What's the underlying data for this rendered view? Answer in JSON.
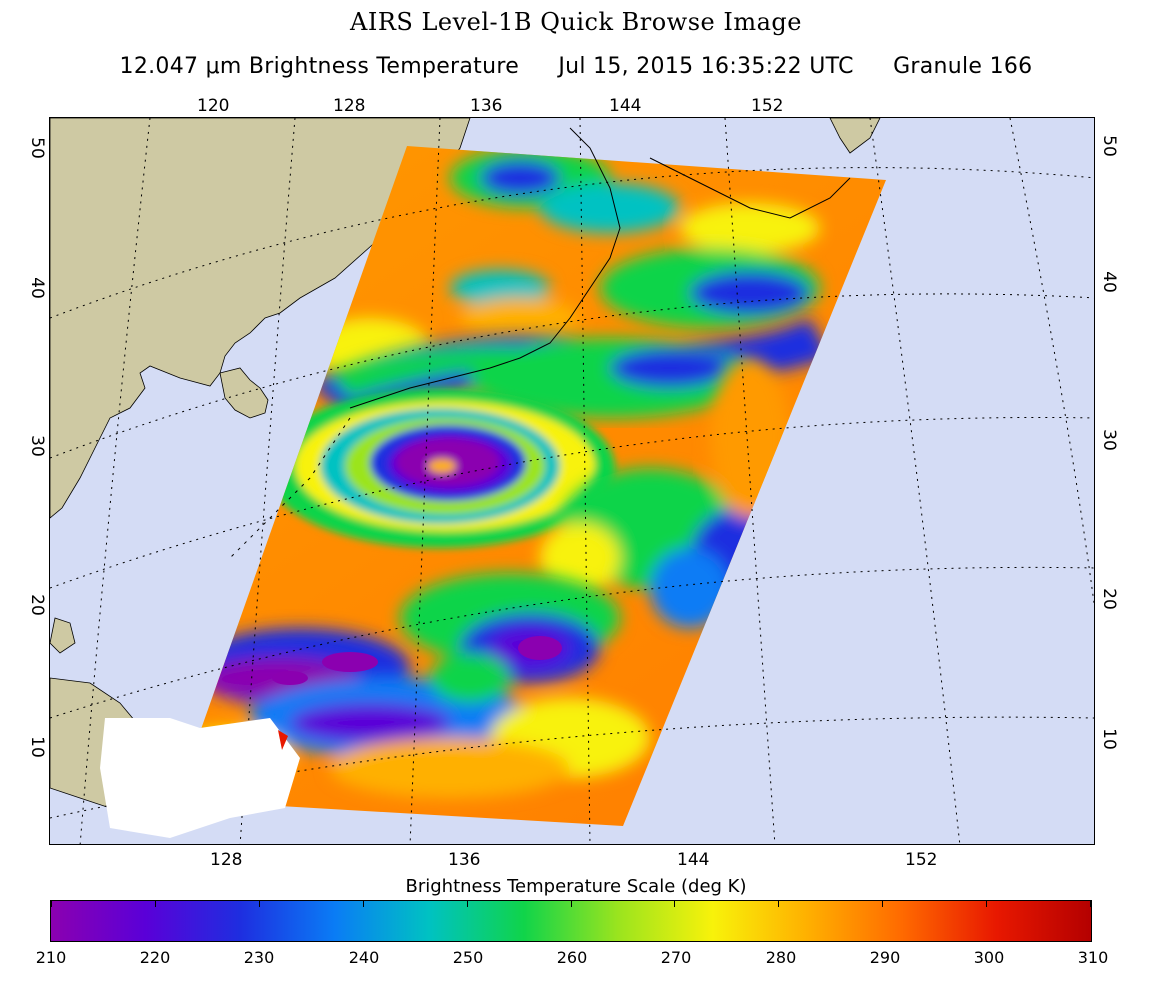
{
  "title": "AIRS Level-1B Quick Browse Image",
  "subtitle": {
    "channel": "12.047 μm Brightness Temperature",
    "datetime": "Jul 15, 2015 16:35:22 UTC",
    "granule": "Granule 166"
  },
  "top_lon_labels": [
    "120",
    "128",
    "136",
    "144",
    "152"
  ],
  "bottom_lon_labels": [
    "128",
    "136",
    "144",
    "152"
  ],
  "left_lat_labels": [
    "50",
    "40",
    "30",
    "20",
    "10"
  ],
  "right_lat_labels": [
    "50",
    "40",
    "30",
    "20",
    "10"
  ],
  "colorbar": {
    "title": "Brightness Temperature Scale (deg K)",
    "ticks": [
      "210",
      "220",
      "230",
      "240",
      "250",
      "260",
      "270",
      "280",
      "290",
      "300",
      "310"
    ],
    "range": [
      210,
      310
    ],
    "colors": [
      "#8b00b0",
      "#5a00d8",
      "#1e2ee0",
      "#0a7cf5",
      "#00c2c2",
      "#10d44a",
      "#9be41e",
      "#f8f20a",
      "#ffb000",
      "#ff6a00",
      "#e81800",
      "#b40000"
    ]
  },
  "colors": {
    "ocean": "#d4dcf5",
    "land": "#cec9a3",
    "grid": "#000000"
  }
}
